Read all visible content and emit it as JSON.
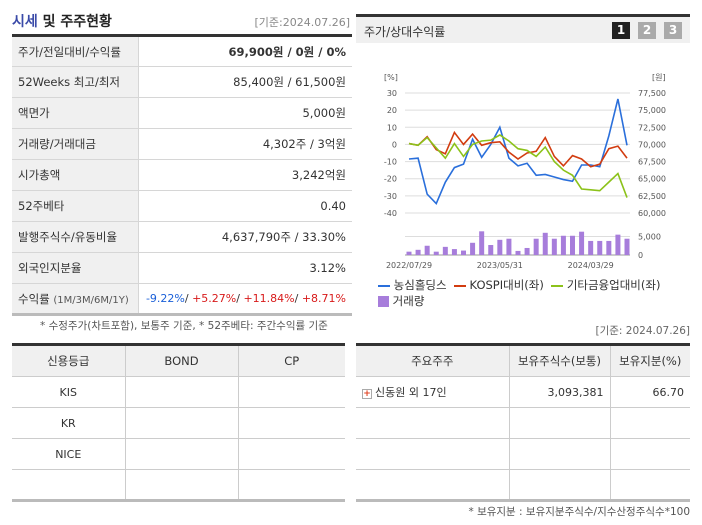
{
  "summary": {
    "title_hl": "시세",
    "title_rest": " 및 주주현황",
    "date": "[기준:2024.07.26]",
    "rows": [
      {
        "label": "주가/전일대비/수익률",
        "value": "69,900원 / 0원 / 0%"
      },
      {
        "label": "52Weeks 최고/최저",
        "value": "85,400원 / 61,500원"
      },
      {
        "label": "액면가",
        "value": "5,000원"
      },
      {
        "label": "거래량/거래대금",
        "value": "4,302주 / 3억원"
      },
      {
        "label": "시가총액",
        "value": "3,242억원"
      },
      {
        "label": "52주베타",
        "value": "0.40"
      },
      {
        "label": "발행주식수/유동비율",
        "value": "4,637,790주 / 33.30%"
      },
      {
        "label": "외국인지분율",
        "value": "3.12%"
      }
    ],
    "returns": {
      "label": "수익률",
      "sub": "(1M/3M/6M/1Y)",
      "m1": "-9.22%",
      "m3": "+5.27%",
      "m6": "+11.84%",
      "y1": "+8.71%"
    },
    "note": "* 수정주가(차트포함), 보통주 기준, * 52주베타: 주간수익률 기준"
  },
  "chart_panel": {
    "title": "주가/상대수익률",
    "pages": [
      "1",
      "2",
      "3"
    ],
    "active_page": "1"
  },
  "chart_data": {
    "type": "line",
    "left_unit": "[%]",
    "right_unit": "[원]",
    "left_ticks": [
      "30",
      "20",
      "10",
      "0",
      "-10",
      "-20",
      "-30",
      "-40"
    ],
    "right_ticks": [
      "77,500",
      "75,000",
      "72,500",
      "70,000",
      "67,500",
      "65,000",
      "62,500",
      "60,000"
    ],
    "ylim": [
      -40,
      30
    ],
    "volume_ticks": [
      "5,000",
      "0"
    ],
    "volume_ylim": [
      0,
      5500
    ],
    "x_labels": [
      "2022/07/29",
      "2023/05/31",
      "2024/03/29"
    ],
    "series": [
      {
        "name": "농심홀딩스",
        "color": "#2a6fdb",
        "values": [
          -8.5,
          -8,
          -29,
          -34.5,
          -22,
          -13.5,
          -11.5,
          3,
          -7.5,
          0,
          10,
          -8,
          -12.5,
          -11,
          -18,
          -17.5,
          -19,
          -20.5,
          -21.5,
          -12,
          -12,
          -13,
          5,
          26.5,
          -0.5
        ]
      },
      {
        "name": "KOSPI대비(좌)",
        "color": "#d23c10",
        "values": [
          0.5,
          -0.5,
          4.5,
          -3,
          -5.5,
          7,
          0,
          6,
          -0.5,
          1,
          1.5,
          -4.5,
          -8.5,
          -5,
          -4,
          4,
          -7,
          -12.5,
          -6.5,
          -8.5,
          -13,
          -11.5,
          -2.5,
          -1,
          -8
        ]
      },
      {
        "name": "기타금융업대비(좌)",
        "color": "#8cc21a",
        "values": [
          0.5,
          -0.5,
          4,
          -2,
          -8,
          0.5,
          -7,
          0,
          2,
          2.5,
          5.5,
          2,
          -2.5,
          -3.5,
          -7,
          -1.5,
          -10,
          -15,
          -18,
          -26,
          -26.5,
          -27,
          -22,
          -17,
          -31
        ]
      }
    ],
    "volume": {
      "name": "거래량",
      "color": "#a77ddb",
      "values": [
        900,
        1400,
        2500,
        900,
        2200,
        1600,
        1200,
        3300,
        6400,
        2700,
        4100,
        4400,
        1100,
        1900,
        4400,
        6000,
        4400,
        5200,
        5200,
        6300,
        3800,
        3800,
        3800,
        5500,
        4400
      ]
    }
  },
  "credit": {
    "headers": [
      "신용등급",
      "BOND",
      "CP"
    ],
    "rows": [
      [
        "KIS",
        "",
        ""
      ],
      [
        "KR",
        "",
        ""
      ],
      [
        "NICE",
        "",
        ""
      ],
      [
        "",
        "",
        ""
      ]
    ]
  },
  "holders": {
    "date": "[기준: 2024.07.26]",
    "headers": [
      "주요주주",
      "보유주식수(보통)",
      "보유지분(%)"
    ],
    "rows": [
      {
        "name": "신동원 외 17인",
        "shares": "3,093,381",
        "pct": "66.70"
      }
    ],
    "note": "* 보유지분 : 보유지분주식수/지수산정주식수*100"
  }
}
